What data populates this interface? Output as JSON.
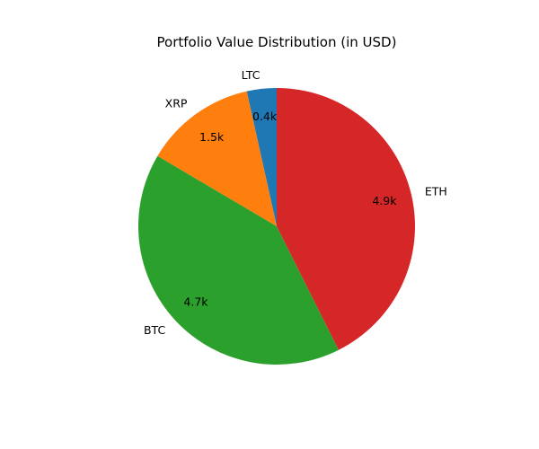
{
  "chart_data": {
    "type": "pie",
    "title": "Portfolio Value Distribution (in USD)",
    "slices": [
      {
        "label": "LTC",
        "value": 0.4,
        "value_label": "0.4k",
        "color": "#1f77b4"
      },
      {
        "label": "XRP",
        "value": 1.5,
        "value_label": "1.5k",
        "color": "#ff7f0e"
      },
      {
        "label": "BTC",
        "value": 4.7,
        "value_label": "4.7k",
        "color": "#2ca02c"
      },
      {
        "label": "ETH",
        "value": 4.9,
        "value_label": "4.9k",
        "color": "#d62728"
      }
    ],
    "start_angle": "top",
    "direction": "counterclockwise",
    "legend": "none"
  }
}
